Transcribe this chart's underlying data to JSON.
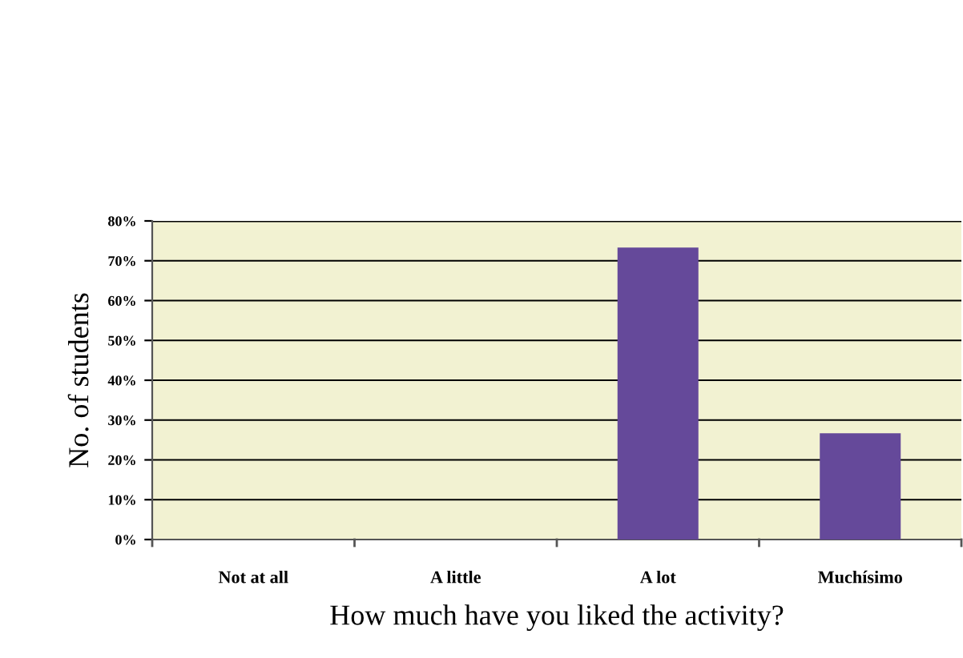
{
  "chart_data": {
    "type": "bar",
    "xlabel": "How much have you liked the activity?",
    "ylabel": "No. of students",
    "categories": [
      "Not at all",
      "A little",
      "A lot",
      "Muchísimo"
    ],
    "values": [
      0,
      0,
      73.3,
      26.7
    ],
    "color": "#65499a",
    "ylim": [
      0,
      80
    ],
    "yticks": [
      {
        "value": 0,
        "label": "0%"
      },
      {
        "value": 10,
        "label": "10%"
      },
      {
        "value": 20,
        "label": "20%"
      },
      {
        "value": 30,
        "label": "30%"
      },
      {
        "value": 40,
        "label": "40%"
      },
      {
        "value": 50,
        "label": "50%"
      },
      {
        "value": 60,
        "label": "60%"
      },
      {
        "value": 70,
        "label": "70%"
      },
      {
        "value": 80,
        "label": "80%"
      }
    ],
    "grid": "y"
  }
}
